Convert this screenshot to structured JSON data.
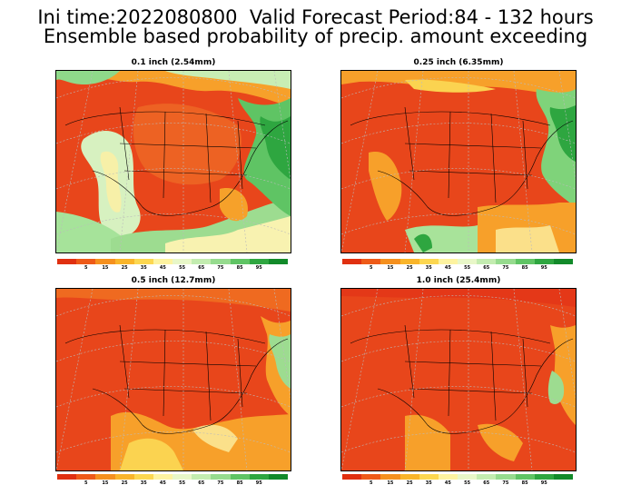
{
  "title": {
    "line1": "Ini time:2022080800  Valid Forecast Period:84 - 132 hours",
    "line2": "Ensemble based probability of precip. amount exceeding"
  },
  "panels": [
    {
      "label": "0.1 inch (2.54mm)"
    },
    {
      "label": "0.25 inch (6.35mm)"
    },
    {
      "label": "0.5 inch (12.7mm)"
    },
    {
      "label": "1.0 inch (25.4mm)"
    }
  ],
  "colorbar": {
    "colors": [
      "#e03010",
      "#ee5a18",
      "#f5901e",
      "#f9b52a",
      "#fcd750",
      "#fdf3a0",
      "#e8f7c8",
      "#c3ecb0",
      "#96db8e",
      "#5fc464",
      "#2ea640",
      "#128a2a"
    ],
    "labels": [
      "5",
      "15",
      "25",
      "35",
      "45",
      "55",
      "65",
      "75",
      "85",
      "95"
    ]
  }
}
